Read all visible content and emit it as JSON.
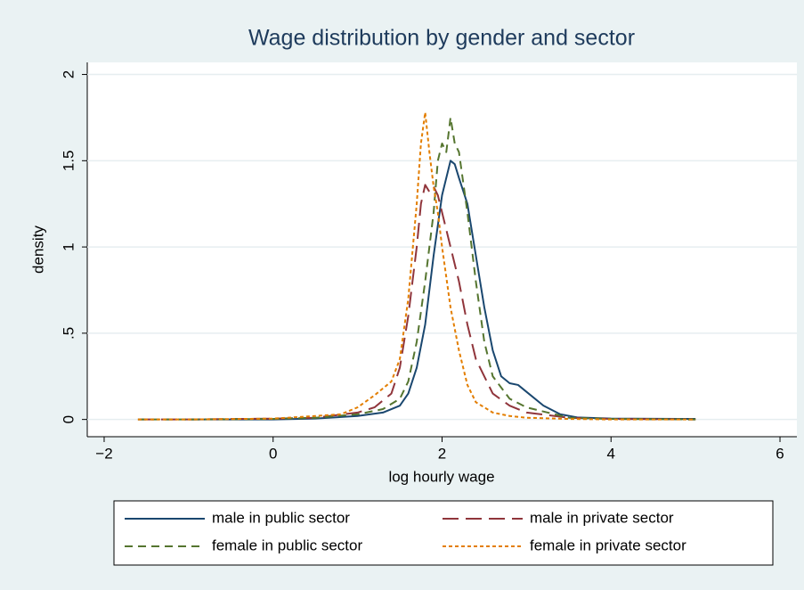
{
  "chart_data": {
    "type": "line",
    "title": "Wage distribution by gender and sector",
    "x_label": "log hourly wage",
    "y_label": "density",
    "xlim": [
      -2.2,
      6.2
    ],
    "ylim": [
      -0.1,
      2.07
    ],
    "xticks": [
      {
        "value": -2,
        "label": "−2"
      },
      0,
      2,
      4,
      6
    ],
    "yticks": [
      0,
      {
        "value": 0.5,
        "label": ".5"
      },
      1,
      1.5,
      2
    ],
    "grid": true,
    "legend_position": "bottom",
    "series": [
      {
        "name": "male in public sector",
        "color": "#1a476f",
        "line_style": "solid",
        "x": [
          -1.0,
          0,
          0.5,
          1.0,
          1.3,
          1.5,
          1.6,
          1.7,
          1.8,
          1.9,
          2.0,
          2.1,
          2.15,
          2.2,
          2.3,
          2.4,
          2.5,
          2.6,
          2.7,
          2.8,
          2.9,
          3.0,
          3.2,
          3.4,
          3.6,
          4.0,
          5.0
        ],
        "values": [
          0,
          0,
          0.005,
          0.02,
          0.04,
          0.08,
          0.15,
          0.3,
          0.55,
          0.95,
          1.3,
          1.5,
          1.48,
          1.4,
          1.25,
          0.95,
          0.65,
          0.4,
          0.25,
          0.21,
          0.2,
          0.16,
          0.08,
          0.03,
          0.012,
          0.005,
          0.003
        ]
      },
      {
        "name": "male in private sector",
        "color": "#90353b",
        "line_style": "longdash",
        "x": [
          -1.6,
          -1.0,
          0,
          0.5,
          1.0,
          1.2,
          1.4,
          1.5,
          1.6,
          1.7,
          1.75,
          1.8,
          1.85,
          1.9,
          1.95,
          2.0,
          2.1,
          2.2,
          2.3,
          2.4,
          2.5,
          2.6,
          2.8,
          3.0,
          3.5,
          4.0,
          5.0
        ],
        "values": [
          0,
          0,
          0.005,
          0.01,
          0.04,
          0.07,
          0.15,
          0.3,
          0.6,
          1.0,
          1.25,
          1.36,
          1.32,
          1.35,
          1.3,
          1.2,
          1.0,
          0.8,
          0.55,
          0.35,
          0.25,
          0.15,
          0.08,
          0.04,
          0.01,
          0.003,
          0
        ]
      },
      {
        "name": "female in public sector",
        "color": "#55752f",
        "line_style": "dash",
        "x": [
          -1.6,
          -1.0,
          0,
          0.5,
          1.0,
          1.3,
          1.5,
          1.6,
          1.7,
          1.8,
          1.9,
          1.95,
          2.0,
          2.05,
          2.1,
          2.15,
          2.2,
          2.3,
          2.4,
          2.5,
          2.6,
          2.8,
          3.0,
          3.5,
          4.0,
          5.0
        ],
        "values": [
          0,
          0,
          0.003,
          0.01,
          0.03,
          0.06,
          0.12,
          0.22,
          0.45,
          0.8,
          1.2,
          1.5,
          1.6,
          1.55,
          1.75,
          1.6,
          1.55,
          1.2,
          0.8,
          0.45,
          0.25,
          0.12,
          0.07,
          0.01,
          0.003,
          0
        ]
      },
      {
        "name": "female in private sector",
        "color": "#e37e00",
        "line_style": "shortdash",
        "x": [
          -1.6,
          -1.0,
          0,
          0.5,
          0.8,
          1.0,
          1.2,
          1.4,
          1.5,
          1.6,
          1.7,
          1.75,
          1.8,
          1.85,
          1.9,
          1.95,
          2.0,
          2.1,
          2.2,
          2.3,
          2.4,
          2.6,
          2.8,
          3.0,
          3.5,
          4.0,
          5.0
        ],
        "values": [
          0,
          0,
          0.005,
          0.02,
          0.03,
          0.07,
          0.14,
          0.22,
          0.35,
          0.7,
          1.25,
          1.6,
          1.78,
          1.55,
          1.35,
          1.2,
          1.0,
          0.65,
          0.4,
          0.2,
          0.1,
          0.04,
          0.02,
          0.01,
          0.003,
          0,
          0
        ]
      }
    ]
  }
}
